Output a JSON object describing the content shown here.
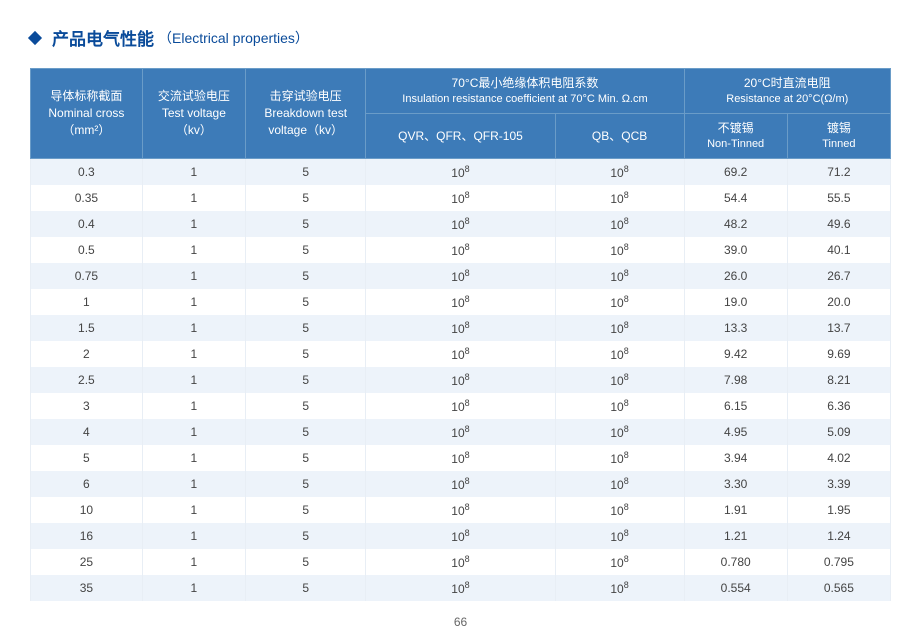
{
  "title": {
    "cn": "产品电气性能",
    "en": "（Electrical properties）"
  },
  "headers": {
    "nominal": "导体标称截面<br>Nominal cross<br>（mm²）",
    "test": "交流试验电压<br>Test voltage<br>（kv）",
    "break": "击穿试验电压<br>Breakdown test<br>voltage（kv）",
    "insGroup": "70°C最小绝缘体积电阻系数<br><span class=\"sub\">Insulation resistance coefficient at 70°C Min. Ω.cm</span>",
    "ins1": "QVR、QFR、QFR-105",
    "ins2": "QB、QCB",
    "resGroup": "20°C时直流电阻<br><span class=\"sub\">Resistance at 20°C(Ω/m)</span>",
    "res1": "不镀锡<br><span class=\"sub\">Non-Tinned</span>",
    "res2": "镀锡<br><span class=\"sub\">Tinned</span>"
  },
  "table": {
    "ins_value_html": "10<sup>8</sup>",
    "rows": [
      {
        "nominal": "0.3",
        "test": "1",
        "break": "5",
        "r1": "69.2",
        "r2": "71.2"
      },
      {
        "nominal": "0.35",
        "test": "1",
        "break": "5",
        "r1": "54.4",
        "r2": "55.5"
      },
      {
        "nominal": "0.4",
        "test": "1",
        "break": "5",
        "r1": "48.2",
        "r2": "49.6"
      },
      {
        "nominal": "0.5",
        "test": "1",
        "break": "5",
        "r1": "39.0",
        "r2": "40.1"
      },
      {
        "nominal": "0.75",
        "test": "1",
        "break": "5",
        "r1": "26.0",
        "r2": "26.7"
      },
      {
        "nominal": "1",
        "test": "1",
        "break": "5",
        "r1": "19.0",
        "r2": "20.0"
      },
      {
        "nominal": "1.5",
        "test": "1",
        "break": "5",
        "r1": "13.3",
        "r2": "13.7"
      },
      {
        "nominal": "2",
        "test": "1",
        "break": "5",
        "r1": "9.42",
        "r2": "9.69"
      },
      {
        "nominal": "2.5",
        "test": "1",
        "break": "5",
        "r1": "7.98",
        "r2": "8.21"
      },
      {
        "nominal": "3",
        "test": "1",
        "break": "5",
        "r1": "6.15",
        "r2": "6.36"
      },
      {
        "nominal": "4",
        "test": "1",
        "break": "5",
        "r1": "4.95",
        "r2": "5.09"
      },
      {
        "nominal": "5",
        "test": "1",
        "break": "5",
        "r1": "3.94",
        "r2": "4.02"
      },
      {
        "nominal": "6",
        "test": "1",
        "break": "5",
        "r1": "3.30",
        "r2": "3.39"
      },
      {
        "nominal": "10",
        "test": "1",
        "break": "5",
        "r1": "1.91",
        "r2": "1.95"
      },
      {
        "nominal": "16",
        "test": "1",
        "break": "5",
        "r1": "1.21",
        "r2": "1.24"
      },
      {
        "nominal": "25",
        "test": "1",
        "break": "5",
        "r1": "0.780",
        "r2": "0.795"
      },
      {
        "nominal": "35",
        "test": "1",
        "break": "5",
        "r1": "0.554",
        "r2": "0.565"
      }
    ]
  },
  "page": "66"
}
